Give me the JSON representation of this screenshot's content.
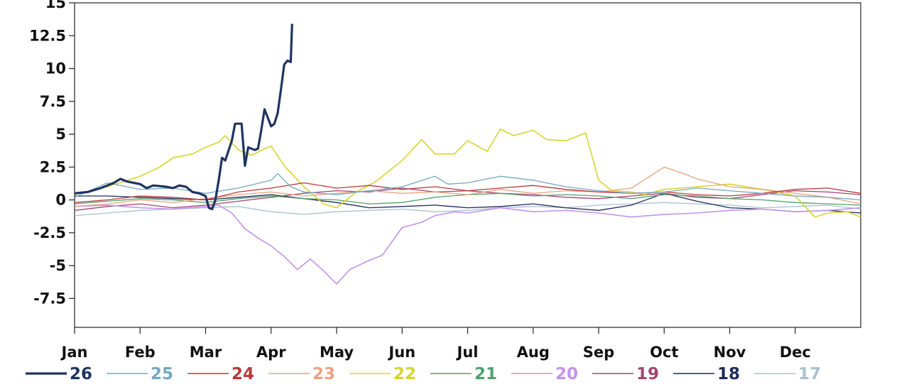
{
  "chart_data": {
    "type": "line",
    "title": "",
    "xlabel": "",
    "ylabel": "",
    "x_ticks": [
      "Jan",
      "Feb",
      "Mar",
      "Apr",
      "May",
      "Jun",
      "Jul",
      "Aug",
      "Sep",
      "Oct",
      "Nov",
      "Dec"
    ],
    "xlim": [
      0,
      12
    ],
    "y_ticks": [
      "15",
      "12.5",
      "10",
      "7.5",
      "5",
      "2.5",
      "0",
      "-2.5",
      "-5",
      "-7.5"
    ],
    "y_tick_values": [
      15,
      12.5,
      10,
      7.5,
      5,
      2.5,
      0,
      -2.5,
      -5,
      -7.5
    ],
    "ylim": [
      -9.7,
      15
    ],
    "grid": false,
    "legend_placement": "bottom",
    "series": [
      {
        "name": "26",
        "color": "#1f3461",
        "width": 3.2,
        "points": [
          [
            0,
            0.5
          ],
          [
            0.2,
            0.6
          ],
          [
            0.4,
            0.9
          ],
          [
            0.6,
            1.3
          ],
          [
            0.7,
            1.6
          ],
          [
            0.8,
            1.4
          ],
          [
            1.0,
            1.2
          ],
          [
            1.1,
            0.9
          ],
          [
            1.2,
            1.1
          ],
          [
            1.4,
            1.0
          ],
          [
            1.5,
            0.9
          ],
          [
            1.6,
            1.1
          ],
          [
            1.7,
            1.0
          ],
          [
            1.8,
            0.6
          ],
          [
            1.9,
            0.5
          ],
          [
            2.0,
            0.3
          ],
          [
            2.05,
            -0.6
          ],
          [
            2.1,
            -0.7
          ],
          [
            2.15,
            0.0
          ],
          [
            2.2,
            1.5
          ],
          [
            2.25,
            3.2
          ],
          [
            2.3,
            3.0
          ],
          [
            2.4,
            4.5
          ],
          [
            2.45,
            5.8
          ],
          [
            2.55,
            5.8
          ],
          [
            2.6,
            2.6
          ],
          [
            2.65,
            4.0
          ],
          [
            2.75,
            3.8
          ],
          [
            2.8,
            3.9
          ],
          [
            2.85,
            5.3
          ],
          [
            2.9,
            6.9
          ],
          [
            3.0,
            5.6
          ],
          [
            3.05,
            5.8
          ],
          [
            3.1,
            6.6
          ],
          [
            3.15,
            8.4
          ],
          [
            3.2,
            10.3
          ],
          [
            3.25,
            10.6
          ],
          [
            3.3,
            10.5
          ],
          [
            3.32,
            13.4
          ]
        ]
      },
      {
        "name": "25",
        "color": "#75a7c2",
        "width": 1.3,
        "points": [
          [
            0,
            0.2
          ],
          [
            0.5,
            1.3
          ],
          [
            1,
            0.8
          ],
          [
            1.5,
            0.9
          ],
          [
            2,
            0.5
          ],
          [
            2.5,
            0.9
          ],
          [
            3,
            1.5
          ],
          [
            3.1,
            2.0
          ],
          [
            3.3,
            1.0
          ],
          [
            3.5,
            0.6
          ],
          [
            4,
            0.4
          ],
          [
            4.5,
            0.7
          ],
          [
            5,
            1.0
          ],
          [
            5.5,
            1.8
          ],
          [
            5.7,
            1.2
          ],
          [
            6,
            1.3
          ],
          [
            6.5,
            1.8
          ],
          [
            7,
            1.5
          ],
          [
            7.5,
            1.0
          ],
          [
            8,
            0.7
          ],
          [
            8.5,
            0.5
          ],
          [
            9,
            0.6
          ],
          [
            9.5,
            0.9
          ],
          [
            10,
            0.7
          ],
          [
            10.5,
            0.5
          ],
          [
            11,
            0.3
          ],
          [
            11.5,
            0.2
          ],
          [
            12,
            0.0
          ]
        ]
      },
      {
        "name": "24",
        "color": "#b73a3a",
        "width": 1.3,
        "points": [
          [
            0,
            -0.2
          ],
          [
            0.5,
            0.0
          ],
          [
            1,
            0.3
          ],
          [
            1.5,
            0.2
          ],
          [
            2,
            0.0
          ],
          [
            2.5,
            0.6
          ],
          [
            3,
            0.9
          ],
          [
            3.5,
            1.3
          ],
          [
            4,
            0.9
          ],
          [
            4.5,
            1.1
          ],
          [
            5,
            0.8
          ],
          [
            5.5,
            1.0
          ],
          [
            6,
            0.7
          ],
          [
            6.5,
            0.9
          ],
          [
            7,
            1.1
          ],
          [
            7.5,
            0.8
          ],
          [
            8,
            0.6
          ],
          [
            8.5,
            0.5
          ],
          [
            9,
            0.6
          ],
          [
            9.5,
            0.4
          ],
          [
            10,
            0.3
          ],
          [
            10.5,
            0.5
          ],
          [
            11,
            0.8
          ],
          [
            11.5,
            0.9
          ],
          [
            12,
            0.5
          ]
        ]
      },
      {
        "name": "23",
        "color": "#e9a27f",
        "width": 1.3,
        "points": [
          [
            0,
            -0.5
          ],
          [
            0.5,
            -0.3
          ],
          [
            1,
            0.0
          ],
          [
            1.5,
            -0.2
          ],
          [
            2,
            0.1
          ],
          [
            2.5,
            0.4
          ],
          [
            3,
            0.6
          ],
          [
            3.5,
            0.3
          ],
          [
            4,
            0.5
          ],
          [
            4.5,
            0.7
          ],
          [
            5,
            0.5
          ],
          [
            5.5,
            0.6
          ],
          [
            6,
            0.4
          ],
          [
            6.5,
            0.8
          ],
          [
            7,
            0.5
          ],
          [
            7.5,
            0.7
          ],
          [
            8,
            0.6
          ],
          [
            8.5,
            0.9
          ],
          [
            9,
            2.5
          ],
          [
            9.3,
            2.0
          ],
          [
            9.5,
            1.6
          ],
          [
            10,
            1.0
          ],
          [
            10.5,
            0.8
          ],
          [
            11,
            0.5
          ],
          [
            11.5,
            0.2
          ],
          [
            12,
            -0.3
          ]
        ]
      },
      {
        "name": "22",
        "color": "#d7d42f",
        "width": 1.6,
        "points": [
          [
            0,
            0.4
          ],
          [
            0.5,
            1.0
          ],
          [
            1,
            1.8
          ],
          [
            1.3,
            2.5
          ],
          [
            1.5,
            3.2
          ],
          [
            1.8,
            3.5
          ],
          [
            2,
            4.0
          ],
          [
            2.2,
            4.4
          ],
          [
            2.3,
            4.9
          ],
          [
            2.5,
            3.8
          ],
          [
            2.7,
            3.4
          ],
          [
            2.9,
            3.9
          ],
          [
            3,
            4.1
          ],
          [
            3.2,
            2.6
          ],
          [
            3.5,
            1.0
          ],
          [
            3.8,
            -0.3
          ],
          [
            4,
            -0.6
          ],
          [
            4.3,
            0.6
          ],
          [
            4.6,
            1.4
          ],
          [
            5,
            3.0
          ],
          [
            5.3,
            4.6
          ],
          [
            5.5,
            3.5
          ],
          [
            5.8,
            3.5
          ],
          [
            6,
            4.5
          ],
          [
            6.3,
            3.7
          ],
          [
            6.5,
            5.4
          ],
          [
            6.7,
            4.9
          ],
          [
            7,
            5.3
          ],
          [
            7.2,
            4.6
          ],
          [
            7.5,
            4.5
          ],
          [
            7.8,
            5.1
          ],
          [
            8,
            1.5
          ],
          [
            8.2,
            0.7
          ],
          [
            8.5,
            0.6
          ],
          [
            8.7,
            0.4
          ],
          [
            9,
            0.8
          ],
          [
            9.5,
            1.0
          ],
          [
            10,
            1.2
          ],
          [
            10.5,
            0.8
          ],
          [
            11,
            0.3
          ],
          [
            11.3,
            -1.3
          ],
          [
            11.5,
            -1.0
          ],
          [
            11.8,
            -0.9
          ],
          [
            12,
            -1.3
          ]
        ]
      },
      {
        "name": "21",
        "color": "#4fa26d",
        "width": 1.3,
        "points": [
          [
            0,
            -0.3
          ],
          [
            0.5,
            -0.1
          ],
          [
            1,
            0.1
          ],
          [
            1.5,
            0.0
          ],
          [
            2,
            -0.2
          ],
          [
            2.5,
            0.1
          ],
          [
            3,
            0.3
          ],
          [
            3.5,
            0.1
          ],
          [
            4,
            0.0
          ],
          [
            4.5,
            -0.3
          ],
          [
            5,
            -0.2
          ],
          [
            5.5,
            0.2
          ],
          [
            6,
            0.4
          ],
          [
            6.5,
            0.5
          ],
          [
            7,
            0.3
          ],
          [
            7.5,
            0.4
          ],
          [
            8,
            0.3
          ],
          [
            8.5,
            0.1
          ],
          [
            9,
            0.4
          ],
          [
            9.5,
            0.3
          ],
          [
            10,
            0.1
          ],
          [
            10.5,
            0.0
          ],
          [
            11,
            -0.2
          ],
          [
            11.5,
            -0.3
          ],
          [
            12,
            -0.4
          ]
        ]
      },
      {
        "name": "20",
        "color": "#c392ea",
        "width": 1.6,
        "points": [
          [
            0,
            -0.5
          ],
          [
            0.5,
            -0.4
          ],
          [
            1,
            -0.6
          ],
          [
            1.5,
            -0.7
          ],
          [
            2,
            -0.5
          ],
          [
            2.2,
            -0.4
          ],
          [
            2.4,
            -1.0
          ],
          [
            2.6,
            -2.2
          ],
          [
            2.8,
            -2.9
          ],
          [
            3,
            -3.5
          ],
          [
            3.2,
            -4.3
          ],
          [
            3.4,
            -5.3
          ],
          [
            3.6,
            -4.5
          ],
          [
            3.8,
            -5.4
          ],
          [
            4,
            -6.4
          ],
          [
            4.2,
            -5.3
          ],
          [
            4.5,
            -4.6
          ],
          [
            4.7,
            -4.2
          ],
          [
            5,
            -2.1
          ],
          [
            5.3,
            -1.7
          ],
          [
            5.5,
            -1.2
          ],
          [
            5.8,
            -0.9
          ],
          [
            6,
            -1.0
          ],
          [
            6.5,
            -0.6
          ],
          [
            7,
            -0.9
          ],
          [
            7.5,
            -0.8
          ],
          [
            8,
            -1.0
          ],
          [
            8.5,
            -1.3
          ],
          [
            9,
            -1.1
          ],
          [
            9.5,
            -1.0
          ],
          [
            10,
            -0.8
          ],
          [
            10.5,
            -0.7
          ],
          [
            11,
            -0.9
          ],
          [
            11.5,
            -0.8
          ],
          [
            12,
            -0.6
          ]
        ]
      },
      {
        "name": "19",
        "color": "#a6436f",
        "width": 1.3,
        "points": [
          [
            0,
            -0.8
          ],
          [
            0.5,
            -0.5
          ],
          [
            1,
            -0.3
          ],
          [
            1.5,
            -0.6
          ],
          [
            2,
            -0.4
          ],
          [
            2.5,
            -0.1
          ],
          [
            3,
            0.2
          ],
          [
            3.5,
            0.5
          ],
          [
            4,
            0.7
          ],
          [
            4.5,
            0.6
          ],
          [
            5,
            0.9
          ],
          [
            5.5,
            0.6
          ],
          [
            6,
            0.7
          ],
          [
            6.5,
            0.5
          ],
          [
            7,
            0.4
          ],
          [
            7.5,
            0.2
          ],
          [
            8,
            0.1
          ],
          [
            8.5,
            0.3
          ],
          [
            9,
            0.5
          ],
          [
            9.5,
            0.2
          ],
          [
            10,
            0.1
          ],
          [
            10.5,
            0.4
          ],
          [
            11,
            0.7
          ],
          [
            11.5,
            0.6
          ],
          [
            12,
            0.4
          ]
        ]
      },
      {
        "name": "18",
        "color": "#1f2a5a",
        "width": 1.3,
        "points": [
          [
            0,
            0.3
          ],
          [
            0.5,
            0.3
          ],
          [
            1,
            0.2
          ],
          [
            1.5,
            0.1
          ],
          [
            2,
            0.0
          ],
          [
            2.5,
            0.2
          ],
          [
            3,
            0.4
          ],
          [
            3.5,
            0.1
          ],
          [
            4,
            -0.2
          ],
          [
            4.5,
            -0.6
          ],
          [
            5,
            -0.5
          ],
          [
            5.5,
            -0.4
          ],
          [
            6,
            -0.6
          ],
          [
            6.5,
            -0.5
          ],
          [
            7,
            -0.3
          ],
          [
            7.5,
            -0.6
          ],
          [
            8,
            -0.8
          ],
          [
            8.5,
            -0.4
          ],
          [
            9,
            0.5
          ],
          [
            9.5,
            -0.1
          ],
          [
            10,
            -0.6
          ],
          [
            10.5,
            -0.7
          ],
          [
            11,
            -0.9
          ],
          [
            11.5,
            -0.8
          ],
          [
            12,
            -1.0
          ]
        ]
      },
      {
        "name": "17",
        "color": "#a9c0cf",
        "width": 1.3,
        "points": [
          [
            0,
            -1.2
          ],
          [
            0.5,
            -1.0
          ],
          [
            1,
            -0.8
          ],
          [
            1.5,
            -0.7
          ],
          [
            2,
            -0.6
          ],
          [
            2.5,
            -0.5
          ],
          [
            3,
            -0.9
          ],
          [
            3.5,
            -1.1
          ],
          [
            4,
            -0.9
          ],
          [
            4.5,
            -0.8
          ],
          [
            5,
            -0.7
          ],
          [
            5.5,
            -0.9
          ],
          [
            6,
            -0.8
          ],
          [
            6.5,
            -0.6
          ],
          [
            7,
            -0.5
          ],
          [
            7.5,
            -0.6
          ],
          [
            8,
            -0.4
          ],
          [
            8.5,
            -0.3
          ],
          [
            9,
            -0.2
          ],
          [
            9.5,
            -0.3
          ],
          [
            10,
            -0.4
          ],
          [
            10.5,
            -0.6
          ],
          [
            11,
            -0.5
          ],
          [
            11.5,
            -0.4
          ],
          [
            12,
            -0.7
          ]
        ]
      }
    ]
  }
}
